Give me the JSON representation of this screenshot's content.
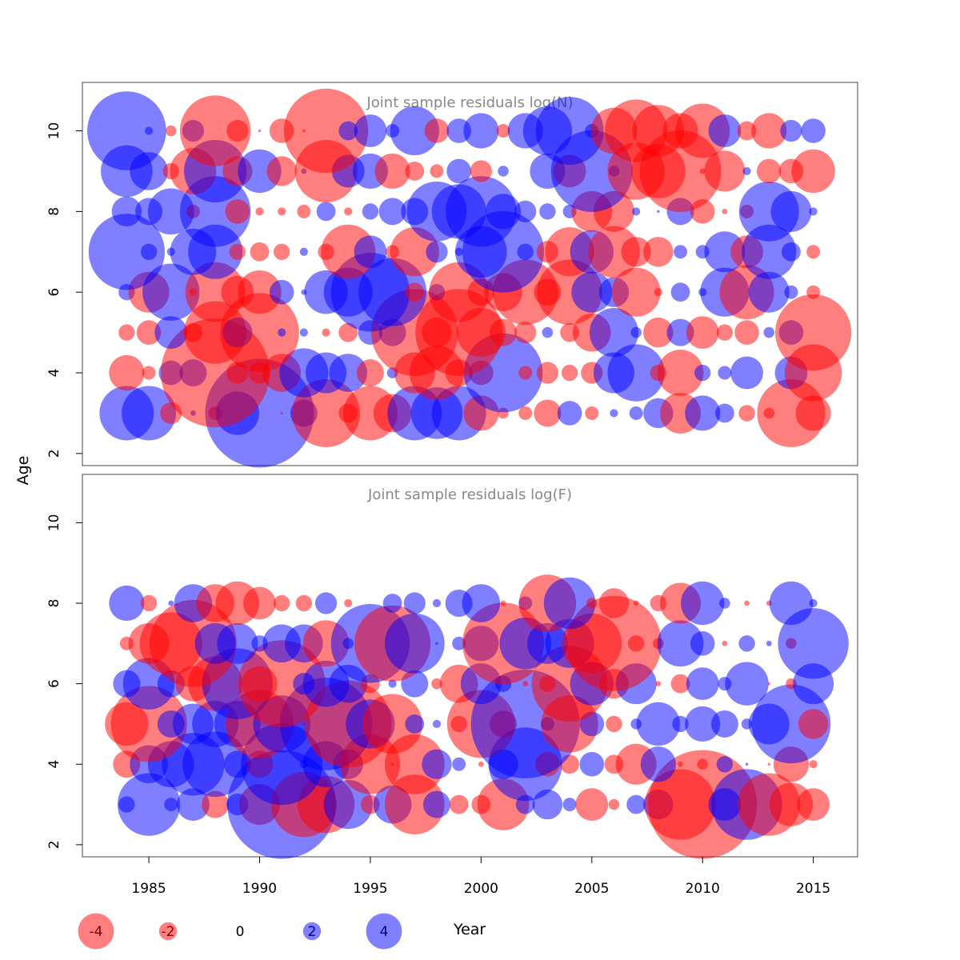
{
  "chart_data": {
    "type": "scatter",
    "encoding": "bubble",
    "xlabel": "Year",
    "ylabel": "Age",
    "xlim": [
      1982,
      2017
    ],
    "ylim": [
      1.7,
      11.2
    ],
    "x_ticks": [
      "1985",
      "1990",
      "1995",
      "2000",
      "2005",
      "2010",
      "2015"
    ],
    "y_ticks": [
      "2",
      "4",
      "6",
      "8",
      "10"
    ],
    "colors": {
      "negative": "#ff0000",
      "positive": "#0000ff",
      "frame": "#444444",
      "title": "#888888"
    },
    "legend": {
      "placement": "bottom",
      "values": [
        -4,
        -2,
        0,
        2,
        4
      ],
      "labels": [
        "-4",
        "-2",
        "0",
        "2",
        "4"
      ]
    },
    "years": [
      1984,
      1985,
      1986,
      1987,
      1988,
      1989,
      1990,
      1991,
      1992,
      1993,
      1994,
      1995,
      1996,
      1997,
      1998,
      1999,
      2000,
      2001,
      2002,
      2003,
      2004,
      2005,
      2006,
      2007,
      2008,
      2009,
      2010,
      2011,
      2012,
      2013,
      2014,
      2015
    ],
    "panels": [
      {
        "title": "Joint sample residuals log(N)",
        "ages": [
          3,
          4,
          5,
          6,
          7,
          8,
          9,
          10
        ],
        "residuals": {
          "3": [
            2.0,
            2.0,
            -0.8,
            0.2,
            -0.5,
            1.6,
            4.0,
            -0.1,
            1.0,
            -2.5,
            -0.7,
            -2.0,
            -1.4,
            2.0,
            1.9,
            2.0,
            -1.3,
            -0.4,
            -0.5,
            -1.0,
            0.9,
            -0.5,
            0.3,
            0.5,
            1.1,
            -1.5,
            1.3,
            0.7,
            -0.6,
            -0.4,
            -2.5,
            -1.3
          ],
          "4": [
            -1.3,
            -0.5,
            0.9,
            1.0,
            -4.0,
            -0.8,
            -0.8,
            -1.4,
            1.8,
            1.5,
            1.4,
            -1.0,
            0.4,
            -1.5,
            -2.0,
            -1.0,
            -0.9,
            2.9,
            -0.5,
            -0.8,
            -0.6,
            -0.8,
            1.5,
            2.1,
            -0.6,
            -1.7,
            0.6,
            0.5,
            1.2,
            -0.03,
            1.2,
            -2.1
          ],
          "5": [
            -0.6,
            -0.9,
            1.2,
            -0.7,
            -2.3,
            1.1,
            -2.9,
            0.3,
            0.3,
            -0.3,
            -0.7,
            0.9,
            1.0,
            -3.2,
            -1.1,
            -3.2,
            -1.8,
            -1.0,
            -0.8,
            0.4,
            -0.7,
            -1.4,
            1.8,
            0.4,
            -1.1,
            1.0,
            -1.2,
            -0.6,
            -0.9,
            0.4,
            0.9,
            -2.8
          ],
          "6": [
            0.6,
            -1.5,
            2.1,
            -0.3,
            -2.2,
            -1.2,
            -1.6,
            0.9,
            0.2,
            1.6,
            1.8,
            2.9,
            2.5,
            -0.7,
            0.6,
            -2.2,
            -1.0,
            -1.4,
            -2.4,
            -1.0,
            -2.4,
            1.5,
            1.1,
            -1.8,
            -0.3,
            0.7,
            0.3,
            1.8,
            -2.0,
            1.5,
            0.5,
            -0.5
          ],
          "7": [
            2.8,
            0.6,
            0.3,
            1.7,
            2.0,
            -0.6,
            -0.7,
            -0.6,
            0.3,
            -0.6,
            -2.0,
            1.2,
            -0.5,
            -1.8,
            0.8,
            0.3,
            1.9,
            3.0,
            0.6,
            -0.8,
            -1.8,
            1.6,
            -1.9,
            -1.1,
            -1.1,
            0.5,
            0.5,
            1.5,
            -1.2,
            2.0,
            0.7,
            -0.5
          ],
          "8": [
            1.1,
            1.0,
            1.7,
            -0.5,
            2.6,
            -0.9,
            -0.3,
            -0.3,
            -0.5,
            0.7,
            -0.3,
            0.6,
            1.0,
            1.0,
            2.2,
            2.0,
            2.6,
            1.3,
            0.8,
            0.6,
            0.5,
            -1.5,
            -1.5,
            0.3,
            0.1,
            1.0,
            -0.9,
            -0.2,
            -0.5,
            2.2,
            1.5,
            0.3
          ],
          "9": [
            1.9,
            1.4,
            -0.6,
            -1.7,
            2.3,
            -1.1,
            1.6,
            -1.1,
            0.2,
            -2.3,
            1.2,
            1.3,
            -1.3,
            -0.7,
            -0.5,
            0.9,
            -0.8,
            0.4,
            -0.02,
            1.3,
            -1.2,
            3.0,
            0.4,
            -2.1,
            -2.0,
            -3.0,
            -0.2,
            -1.5,
            0.3,
            -0.9,
            -0.9,
            -1.6
          ],
          "10": [
            2.9,
            0.3,
            -0.4,
            0.8,
            -2.6,
            -0.8,
            -0.1,
            -0.9,
            -0.1,
            -3.1,
            0.7,
            1.2,
            0.5,
            1.8,
            -0.9,
            0.9,
            1.3,
            -0.5,
            1.3,
            1.8,
            2.5,
            0.5,
            -1.7,
            -2.3,
            -1.9,
            -1.3,
            -2.0,
            1.2,
            -0.7,
            -1.3,
            0.8,
            0.9
          ]
        }
      },
      {
        "title": "Joint sample residuals log(F)",
        "ages": [
          3,
          4,
          5,
          6,
          7,
          8
        ],
        "residuals": {
          "3": [
            0.6,
            2.3,
            0.5,
            1.2,
            -1.0,
            0.8,
            -1.5,
            4.0,
            -2.4,
            -2.1,
            1.8,
            -0.7,
            1.4,
            -2.2,
            1.0,
            -0.7,
            -0.7,
            -1.9,
            0.7,
            1.1,
            0.5,
            -1.2,
            -0.4,
            0.7,
            1.1,
            -2.6,
            -4.0,
            1.2,
            2.6,
            -2.3,
            -1.6,
            -1.2
          ],
          "4": [
            -1.0,
            1.4,
            1.7,
            2.3,
            2.4,
            1.0,
            -1.0,
            3.0,
            0.3,
            1.7,
            1.1,
            -2.2,
            -0.1,
            -2.2,
            1.1,
            0.5,
            -0.2,
            1.1,
            2.7,
            -0.9,
            -0.7,
            0.9,
            -0.7,
            -1.5,
            1.3,
            -0.2,
            -0.4,
            0.6,
            0.1,
            -0.1,
            -1.3,
            -0.3
          ],
          "5": [
            -1.6,
            -2.8,
            1.0,
            1.5,
            1.7,
            1.7,
            -2.5,
            2.1,
            -0.1,
            3.4,
            -3.2,
            1.8,
            -2.2,
            0.7,
            0.3,
            -0.6,
            -2.5,
            -1.0,
            4.0,
            0.5,
            -2.1,
            0.9,
            -0.6,
            0.4,
            1.6,
            0.6,
            1.3,
            1.0,
            0.4,
            1.5,
            2.9,
            -1.1
          ],
          "6": [
            1.0,
            1.9,
            1.0,
            -1.3,
            -2.0,
            2.6,
            -1.3,
            -3.2,
            0.8,
            1.7,
            1.4,
            -0.7,
            0.3,
            1.0,
            -0.4,
            -1.4,
            1.5,
            0.6,
            -0.2,
            -0.6,
            -2.8,
            1.6,
            -1.1,
            1.5,
            -0.2,
            -0.7,
            1.2,
            0.5,
            1.6,
            -0.1,
            -0.4,
            1.5
          ],
          "7": [
            -0.5,
            -1.5,
            -2.3,
            -3.2,
            1.5,
            1.5,
            0.6,
            1.4,
            1.4,
            -1.7,
            0.4,
            2.9,
            -2.8,
            2.2,
            0.1,
            0.5,
            1.3,
            -3.0,
            1.9,
            1.5,
            1.8,
            -2.2,
            -3.5,
            -0.6,
            -0.4,
            1.7,
            0.9,
            -0.2,
            0.6,
            0.2,
            -0.4,
            2.6
          ],
          "8": [
            1.3,
            -0.6,
            0.2,
            1.4,
            -1.4,
            -1.6,
            -1.2,
            -0.6,
            -0.6,
            0.8,
            -0.3,
            -0.02,
            0.7,
            0.8,
            0.3,
            1.0,
            1.4,
            -0.2,
            0.5,
            -2.1,
            1.9,
            -0.4,
            -1.1,
            -0.2,
            -0.6,
            -1.5,
            1.6,
            0.4,
            -0.2,
            -0.2,
            1.6,
            0.3
          ]
        }
      }
    ]
  }
}
